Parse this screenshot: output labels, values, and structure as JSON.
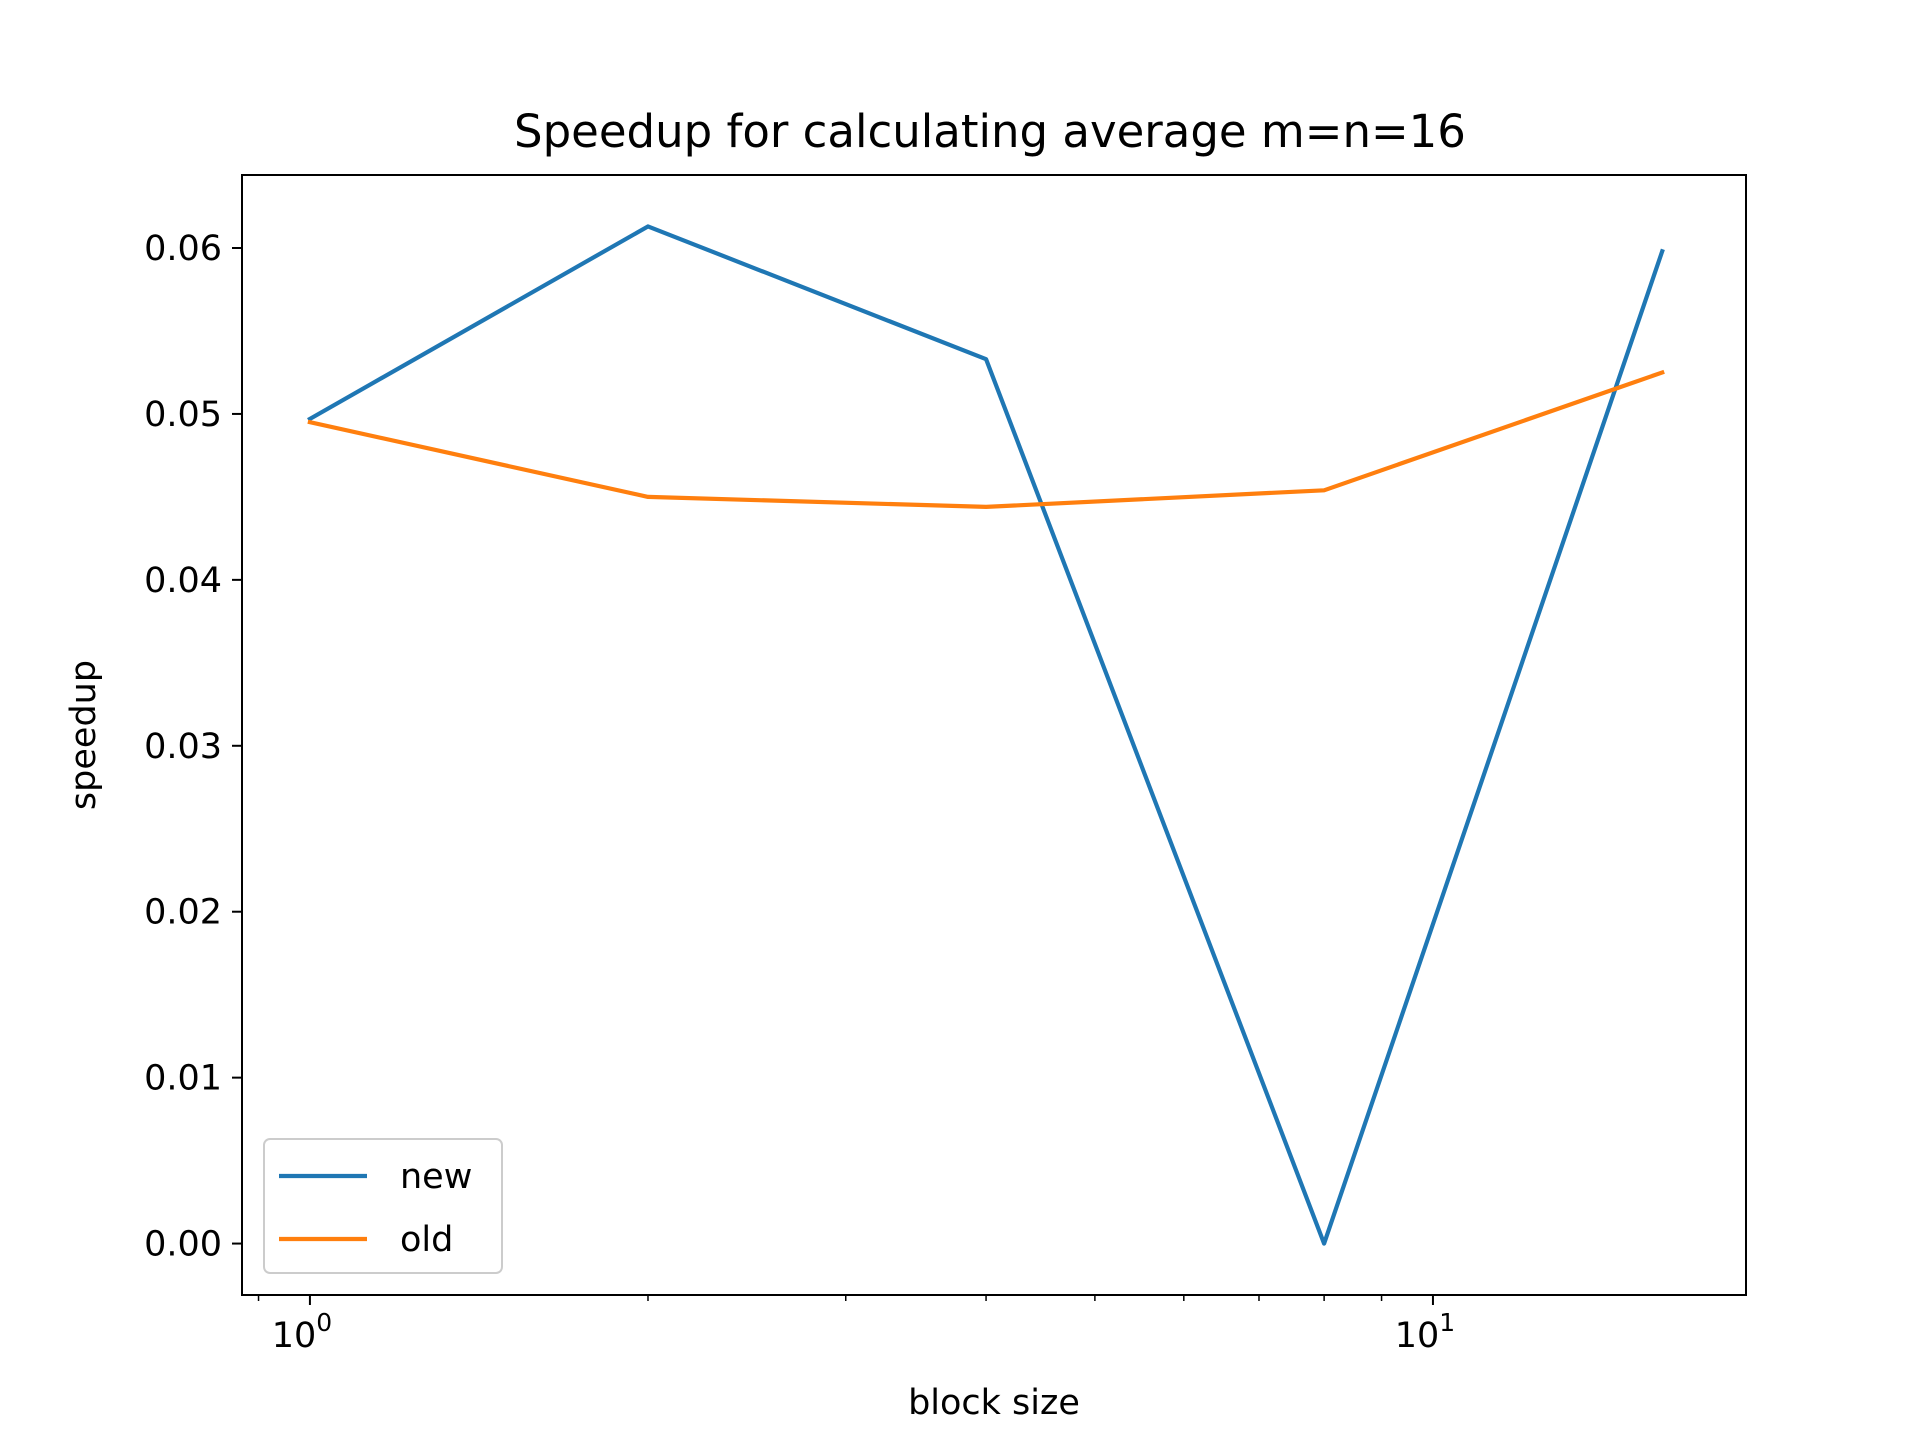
{
  "chart_data": {
    "type": "line",
    "title": "Speedup for calculating average m=n=16",
    "xlabel": "block size",
    "ylabel": "speedup",
    "xscale": "log",
    "x": [
      1,
      2,
      4,
      8,
      16
    ],
    "series": [
      {
        "name": "new",
        "color": "#1f77b4",
        "values": [
          0.0497,
          0.0613,
          0.0533,
          0.0,
          0.0598
        ]
      },
      {
        "name": "old",
        "color": "#ff7f0e",
        "values": [
          0.0495,
          0.045,
          0.0444,
          0.0454,
          0.0525
        ]
      }
    ],
    "xlim": [
      0.87,
      19.0
    ],
    "ylim": [
      -0.0031,
      0.0644
    ],
    "yticks": [
      0.0,
      0.01,
      0.02,
      0.03,
      0.04,
      0.05,
      0.06
    ],
    "ytick_labels": [
      "0.00",
      "0.01",
      "0.02",
      "0.03",
      "0.04",
      "0.05",
      "0.06"
    ],
    "xticks_major": [
      1,
      10
    ],
    "xtick_base": "10",
    "xtick_exponents": [
      "0",
      "1"
    ],
    "xticks_minor": [
      0.9,
      2,
      3,
      4,
      5,
      6,
      7,
      8,
      9
    ],
    "grid": false,
    "legend": "lower-left"
  }
}
